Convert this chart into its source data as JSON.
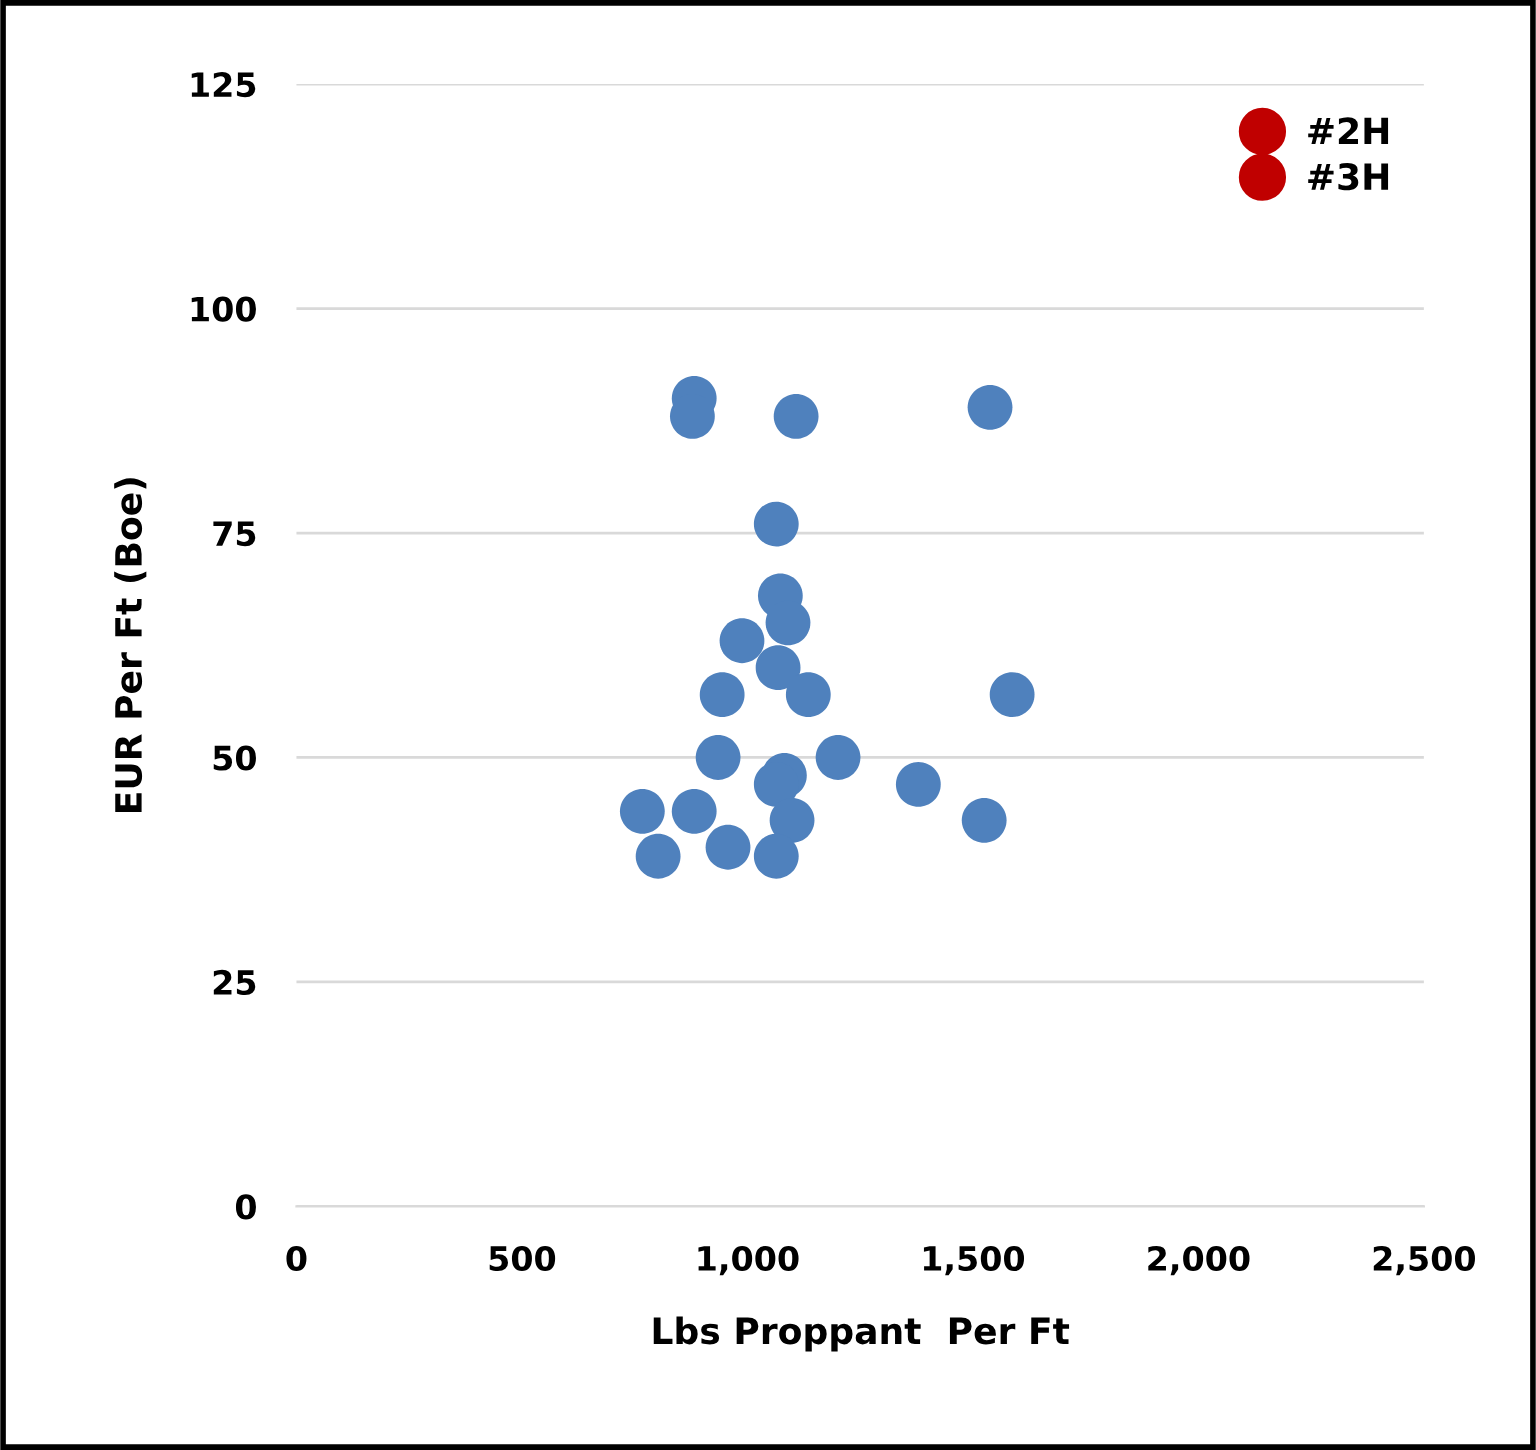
{
  "chart_data": {
    "type": "scatter",
    "xlabel": "Lbs Proppant  Per Ft",
    "ylabel": "EUR Per Ft (Boe)",
    "series": [
      {
        "color": "#4f81bd",
        "x": [
          882,
          878,
          1108,
          1538,
          1064,
          1073,
          1090,
          988,
          1068,
          1135,
          1587,
          944,
          935,
          1201,
          1082,
          1064,
          1379,
          767,
          882,
          1099,
          1525,
          802,
          957,
          1064
        ],
        "values": [
          90,
          88,
          88,
          89,
          76,
          68,
          65,
          63,
          60,
          57,
          57,
          57,
          50,
          50,
          48,
          47,
          47,
          44,
          44,
          43,
          43,
          39,
          40,
          39
        ]
      },
      {
        "name": "#2H",
        "color": "#c00000"
      },
      {
        "name": "#3H",
        "color": "#c00000"
      }
    ],
    "xlim": [
      0,
      2500
    ],
    "xticks": [
      {
        "value": 0,
        "label": "0"
      },
      {
        "value": 500,
        "label": "500"
      },
      {
        "value": 1000,
        "label": "1,000"
      },
      {
        "value": 1500,
        "label": "1,500"
      },
      {
        "value": 2000,
        "label": "2,000"
      },
      {
        "value": 2500,
        "label": "2,500"
      }
    ],
    "ylim": [
      0,
      125
    ],
    "yticks": [
      0,
      25,
      50,
      75,
      100,
      125
    ],
    "grid": "y",
    "legend": "top right",
    "marker": "circle"
  }
}
